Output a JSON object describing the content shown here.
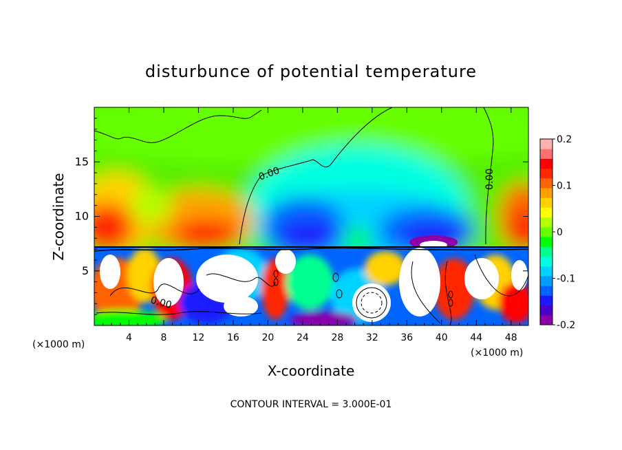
{
  "chart_data": {
    "type": "heatmap",
    "title": "disturbunce of potential temperature",
    "xlabel": "X-coordinate",
    "ylabel": "Z-coordinate",
    "x_unit": "(×1000 m)",
    "x_unit_secondary": "(×1000 m)",
    "footer": "CONTOUR INTERVAL = 3.000E-01",
    "xlim": [
      0,
      50
    ],
    "ylim": [
      0,
      20
    ],
    "xticks": [
      "4",
      "8",
      "12",
      "16",
      "20",
      "24",
      "28",
      "32",
      "36",
      "40",
      "44",
      "48"
    ],
    "xtick_values": [
      4,
      8,
      12,
      16,
      20,
      24,
      28,
      32,
      36,
      40,
      44,
      48
    ],
    "yticks": [
      "5",
      "10",
      "15"
    ],
    "ytick_values": [
      5,
      10,
      15
    ],
    "colorbar": {
      "range": [
        -0.2,
        0.2
      ],
      "labels": [
        "0.2",
        "0.1",
        "0",
        "-0.1",
        "-0.2"
      ],
      "label_values": [
        0.2,
        0.1,
        0,
        -0.1,
        -0.2
      ],
      "colors": [
        "#8b00a8",
        "#4b00c8",
        "#1a1aff",
        "#0064ff",
        "#009bff",
        "#00d2ff",
        "#00ffe0",
        "#00ff90",
        "#00ff00",
        "#66ff00",
        "#b4ff00",
        "#ffff00",
        "#ffd200",
        "#ffa000",
        "#ff6400",
        "#ff2800",
        "#ff0000",
        "#ff7070",
        "#ffb0b0"
      ]
    },
    "contour_labels": [
      {
        "text": "0.00",
        "x": 20,
        "z": 14.0
      },
      {
        "text": "0.00",
        "x": 46,
        "z": 13.5
      },
      {
        "text": "0.00",
        "x": 7.5,
        "z": 2.0
      }
    ],
    "inversion_height": 7.3
  }
}
